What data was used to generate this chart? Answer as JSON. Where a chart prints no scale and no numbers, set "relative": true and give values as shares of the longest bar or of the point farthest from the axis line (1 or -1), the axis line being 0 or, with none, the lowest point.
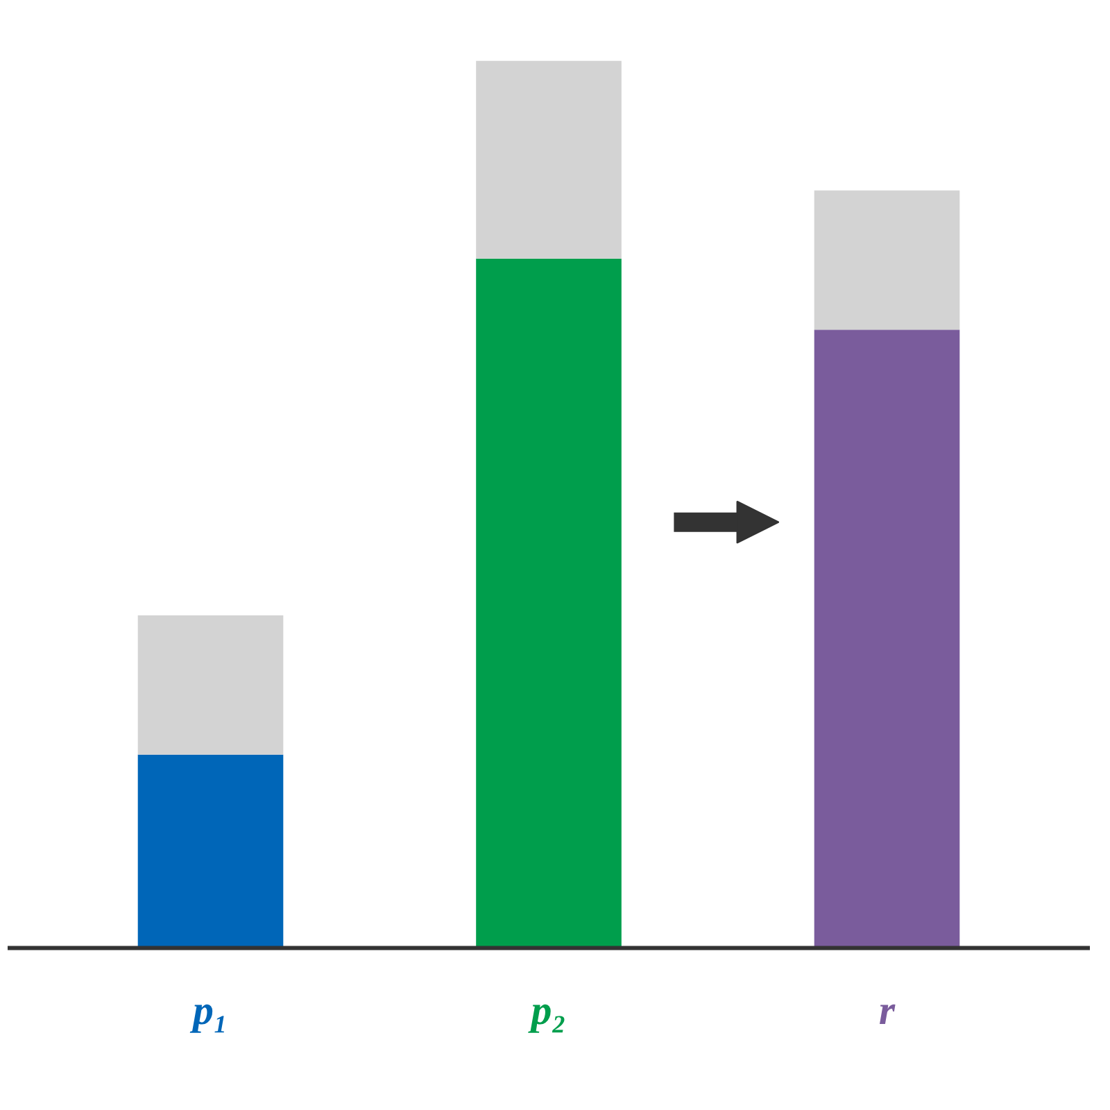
{
  "chart_data": {
    "type": "bar",
    "stacked": true,
    "relative": true,
    "categories": [
      "p₁",
      "p₂",
      "r"
    ],
    "series": [
      {
        "colors": [
          "#0066b8",
          "#009e4c",
          "#7a5c9c"
        ],
        "values": [
          0.218,
          0.777,
          0.697
        ]
      },
      {
        "color": "#d3d3d3",
        "values": [
          0.157,
          0.223,
          0.157
        ]
      }
    ],
    "grid": false,
    "tick_labels": "x"
  }
}
